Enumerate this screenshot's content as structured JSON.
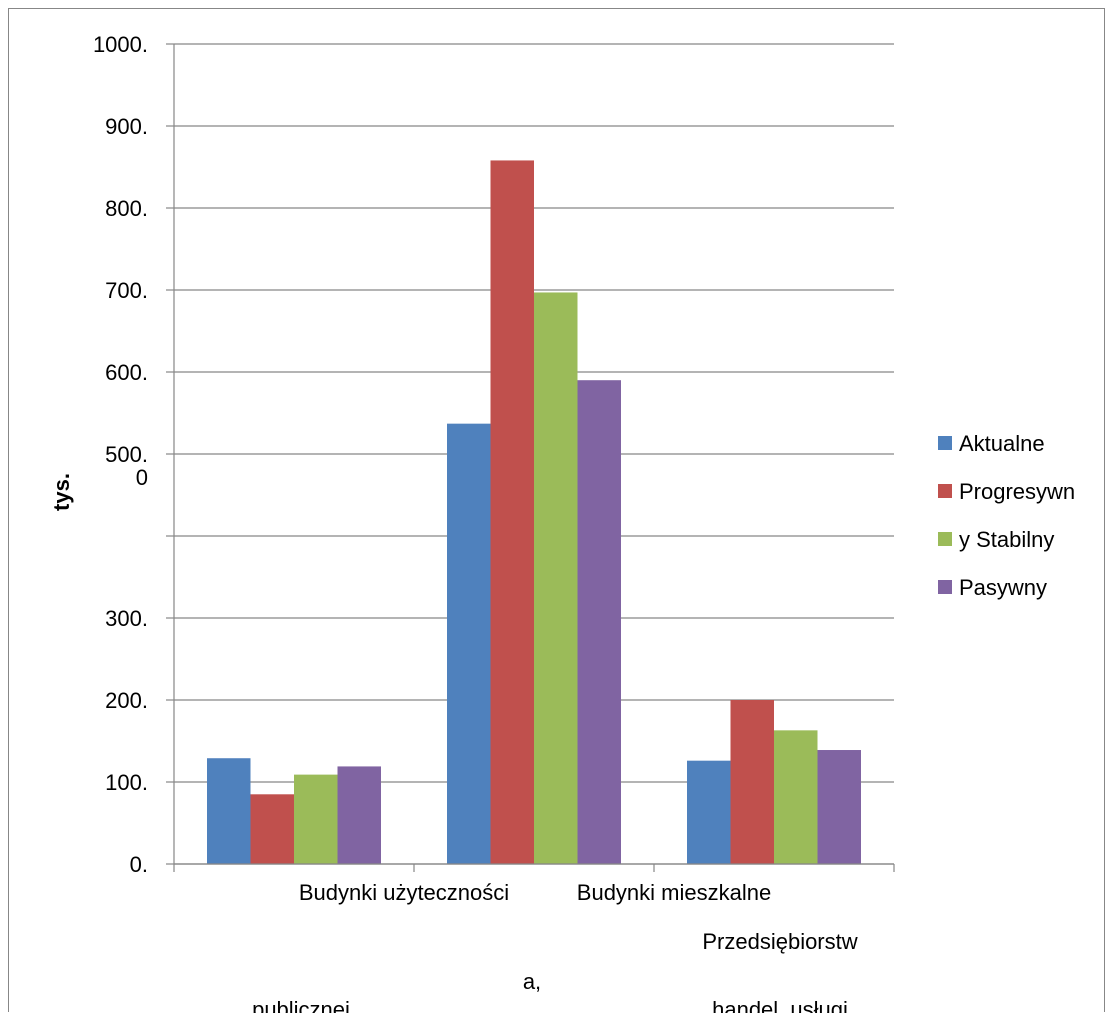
{
  "chart_data": {
    "type": "bar",
    "ylabel": "tys.",
    "ylim": [
      0,
      1000
    ],
    "grid": true,
    "legend_position": "right",
    "y_tick_labels": [
      "0.",
      "100.",
      "200.",
      "300.",
      "",
      "500.\n0",
      "600.",
      "700.",
      "800.",
      "900.",
      "1000."
    ],
    "y_ticks": [
      0,
      100,
      200,
      300,
      400,
      500,
      600,
      700,
      800,
      900,
      1000
    ],
    "category_label_lines": [
      {
        "text": "Budynki użyteczności",
        "col": 0,
        "row": 0
      },
      {
        "text": "Budynki mieszkalne",
        "col": 1,
        "row": 0
      },
      {
        "text": "Przedsiębiorstw",
        "col": 2,
        "row": 1
      },
      {
        "text": "a,",
        "col": 1,
        "row": 2
      },
      {
        "text": "publicznej",
        "col": 0,
        "row": 3
      },
      {
        "text": "handel, usługi",
        "col": 2,
        "row": 3
      }
    ],
    "categories": [
      "Budynki użyteczności publicznej",
      "Budynki mieszkalne",
      "Przedsiębiorstwa, handel, usługi"
    ],
    "series": [
      {
        "name": "Aktualne",
        "color": "#4F81BD",
        "values": [
          129,
          537,
          126
        ]
      },
      {
        "name": "Progresywn",
        "color": "#C0504D",
        "values": [
          85,
          858,
          200
        ]
      },
      {
        "name": "y Stabilny",
        "color": "#9BBB59",
        "values": [
          109,
          697,
          163
        ]
      },
      {
        "name": "Pasywny",
        "color": "#8064A2",
        "values": [
          119,
          590,
          139
        ]
      }
    ]
  }
}
